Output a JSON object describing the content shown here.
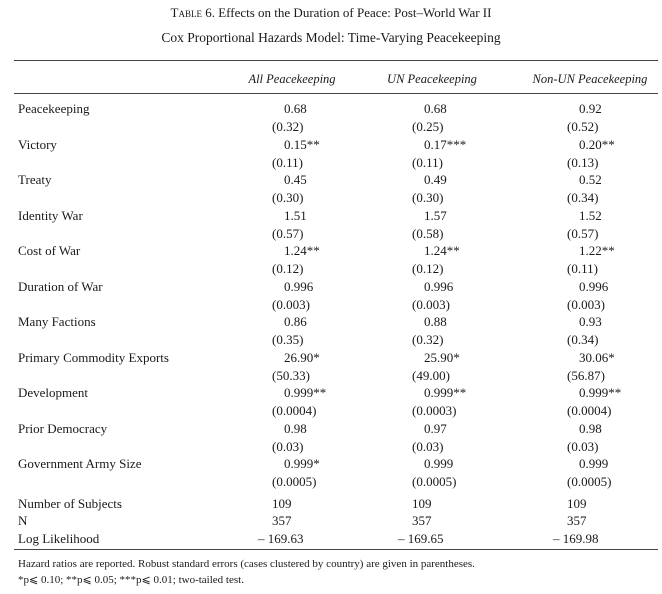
{
  "table": {
    "label": "Table 6.",
    "title": "Effects on the Duration of Peace: Post–World War II",
    "subtitle": "Cox Proportional Hazards Model: Time-Varying Peacekeeping",
    "columns": [
      "All Peacekeeping",
      "UN Peacekeeping",
      "Non-UN Peacekeeping"
    ],
    "rows": [
      {
        "name": "Peacekeeping",
        "coef": [
          "0.68",
          "0.68",
          "0.92"
        ],
        "se": [
          "(0.32)",
          "(0.25)",
          "(0.52)"
        ]
      },
      {
        "name": "Victory",
        "coef": [
          "0.15**",
          "0.17***",
          "0.20**"
        ],
        "se": [
          "(0.11)",
          "(0.11)",
          "(0.13)"
        ]
      },
      {
        "name": "Treaty",
        "coef": [
          "0.45",
          "0.49",
          "0.52"
        ],
        "se": [
          "(0.30)",
          "(0.30)",
          "(0.34)"
        ]
      },
      {
        "name": "Identity War",
        "coef": [
          "1.51",
          "1.57",
          "1.52"
        ],
        "se": [
          "(0.57)",
          "(0.58)",
          "(0.57)"
        ]
      },
      {
        "name": "Cost of War",
        "coef": [
          "1.24**",
          "1.24**",
          "1.22**"
        ],
        "se": [
          "(0.12)",
          "(0.12)",
          "(0.11)"
        ]
      },
      {
        "name": "Duration of War",
        "coef": [
          "0.996",
          "0.996",
          "0.996"
        ],
        "se": [
          "(0.003)",
          "(0.003)",
          "(0.003)"
        ]
      },
      {
        "name": "Many Factions",
        "coef": [
          "0.86",
          "0.88",
          "0.93"
        ],
        "se": [
          "(0.35)",
          "(0.32)",
          "(0.34)"
        ]
      },
      {
        "name": "Primary Commodity Exports",
        "coef": [
          "26.90*",
          "25.90*",
          "30.06*"
        ],
        "se": [
          "(50.33)",
          "(49.00)",
          "(56.87)"
        ]
      },
      {
        "name": "Development",
        "coef": [
          "0.999**",
          "0.999**",
          "0.999**"
        ],
        "se": [
          "(0.0004)",
          "(0.0003)",
          "(0.0004)"
        ]
      },
      {
        "name": "Prior Democracy",
        "coef": [
          "0.98",
          "0.97",
          "0.98"
        ],
        "se": [
          "(0.03)",
          "(0.03)",
          "(0.03)"
        ]
      },
      {
        "name": "Government Army Size",
        "coef": [
          "0.999*",
          "0.999",
          "0.999"
        ],
        "se": [
          "(0.0005)",
          "(0.0005)",
          "(0.0005)"
        ]
      }
    ],
    "stats": [
      {
        "name": "Number of Subjects",
        "values": [
          "109",
          "109",
          "109"
        ]
      },
      {
        "name": "N",
        "values": [
          "357",
          "357",
          "357"
        ]
      },
      {
        "name": "Log Likelihood",
        "values": [
          "– 169.63",
          "– 169.65",
          "– 169.98"
        ]
      }
    ],
    "notes": [
      "Hazard ratios are reported. Robust standard errors (cases clustered by country) are given in parentheses.",
      "*p⩽ 0.10; **p⩽ 0.05; ***p⩽ 0.01; two-tailed test."
    ]
  }
}
